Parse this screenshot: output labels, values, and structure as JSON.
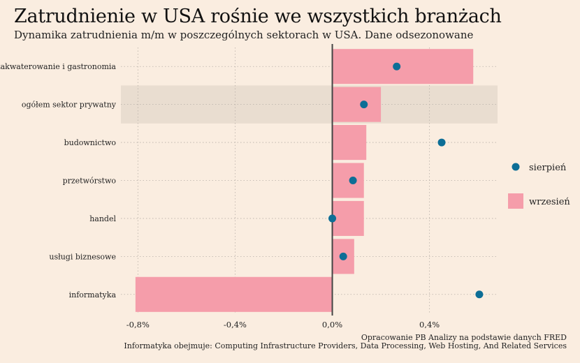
{
  "title": "Zatrudnienie w USA rośnie we wszystkich branżach",
  "subtitle": "Dynamika zatrudnienia m/m w poszczególnych sektorach w USA. Dane odsezonowane",
  "caption": {
    "source": "Opracowanie PB Analizy na podstawie danych FRED",
    "note": "Informatyka obejmuje: Computing Infrastructure Providers, Data Processing, Web Hosting, And Related Services"
  },
  "colors": {
    "background": "#faede0",
    "bar": "#f59daa",
    "dot": "#0d6e96",
    "highlight_band": "#e9ddd0",
    "zero_line": "#444444",
    "grid": "#b8b0a8"
  },
  "chart_data": {
    "type": "bar",
    "orientation": "horizontal",
    "categories": [
      "zakwaterowanie i gastronomia",
      "ogółem sektor prywatny",
      "budownictwo",
      "przetwórstwo",
      "handel",
      "usługi biznesowe",
      "informatyka"
    ],
    "highlighted_category": "ogółem sektor prywatny",
    "series": [
      {
        "name": "wrzesień",
        "kind": "bar",
        "values": [
          0.58,
          0.2,
          0.14,
          0.13,
          0.13,
          0.09,
          -0.81
        ]
      },
      {
        "name": "sierpień",
        "kind": "dot",
        "values": [
          0.265,
          0.13,
          0.45,
          0.085,
          0.0,
          0.045,
          0.605
        ]
      }
    ],
    "xlim": [
      -0.87,
      0.68
    ],
    "xticks": [
      -0.8,
      -0.4,
      0.0,
      0.4
    ],
    "xtick_labels": [
      "-0,8%",
      "-0,4%",
      "0,0%",
      "0,4%"
    ],
    "grid": true,
    "legend_position": "right"
  }
}
